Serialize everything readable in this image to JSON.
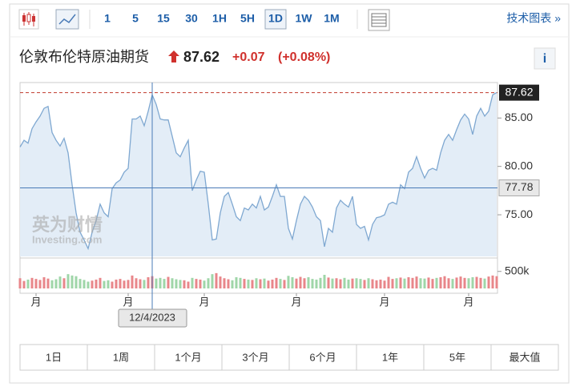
{
  "toolbar": {
    "intervals": [
      "1",
      "5",
      "15",
      "30",
      "1H",
      "5H",
      "1D",
      "1W",
      "1M"
    ],
    "active": "1D",
    "technical": "技术图表 »"
  },
  "header": {
    "name": "伦敦布伦特原油期货",
    "price": "87.62",
    "change": "+0.07",
    "change_pct": "(+0.08%)",
    "info": "i"
  },
  "watermark": {
    "cn": "英为财情",
    "en": "Investing.com"
  },
  "ranges": [
    "1日",
    "1周",
    "1个月",
    "3个月",
    "6个月",
    "1年",
    "5年",
    "最大值"
  ],
  "chart_data": {
    "type": "line",
    "color": "#7fa8d1",
    "fill": "#e3edf7",
    "categories": [
      null,
      null,
      null,
      null,
      "月",
      null,
      null,
      null,
      null,
      null,
      null,
      null,
      null,
      null,
      null,
      null,
      null,
      null,
      null,
      null,
      null,
      null,
      null,
      null,
      null,
      null,
      null,
      "月",
      null,
      null,
      null,
      null,
      null,
      null,
      null,
      null,
      null,
      null,
      null,
      null,
      null,
      null,
      null,
      null,
      null,
      null,
      "月",
      null,
      null,
      null,
      null,
      null,
      null,
      null,
      null,
      null,
      null,
      null,
      null,
      null,
      null,
      null,
      null,
      null,
      null,
      null,
      null,
      null,
      null,
      "月",
      null,
      null,
      null,
      null,
      null,
      null,
      null,
      null,
      null,
      null,
      null,
      null,
      null,
      null,
      null,
      null,
      null,
      null,
      null,
      null,
      null,
      "月",
      null,
      null,
      null,
      null,
      null,
      null,
      null,
      null,
      null,
      null,
      null,
      null,
      null,
      null,
      null,
      null,
      null,
      null,
      null,
      null,
      "月",
      null,
      null,
      null,
      null,
      null,
      null,
      null
    ],
    "values": [
      82.0,
      82.7,
      82.4,
      83.9,
      84.6,
      85.2,
      86.0,
      86.2,
      83.5,
      82.7,
      82.1,
      82.9,
      81.4,
      78.1,
      75.2,
      73.2,
      72.4,
      71.5,
      73.2,
      74.4,
      76.1,
      75.2,
      74.8,
      77.7,
      78.3,
      78.6,
      79.4,
      79.8,
      84.9,
      84.9,
      85.2,
      84.2,
      85.7,
      87.4,
      86.4,
      84.9,
      84.8,
      84.8,
      83.1,
      81.4,
      81.0,
      81.9,
      82.7,
      77.5,
      78.6,
      79.5,
      79.4,
      76.1,
      72.4,
      72.5,
      75.2,
      76.9,
      77.3,
      76.1,
      74.8,
      74.4,
      75.7,
      75.5,
      76.1,
      75.7,
      76.9,
      75.5,
      75.8,
      76.9,
      78.1,
      76.9,
      76.9,
      73.6,
      72.5,
      74.4,
      76.1,
      76.9,
      76.5,
      75.8,
      74.8,
      74.4,
      71.7,
      73.6,
      73.2,
      75.7,
      76.5,
      76.1,
      75.8,
      76.9,
      74.0,
      73.6,
      73.8,
      72.4,
      74.0,
      74.7,
      74.8,
      75.0,
      76.1,
      76.3,
      76.1,
      78.1,
      77.7,
      79.4,
      79.8,
      81.0,
      79.8,
      78.8,
      79.6,
      79.8,
      79.6,
      81.4,
      82.7,
      83.3,
      82.7,
      83.8,
      84.8,
      85.4,
      84.9,
      83.3,
      85.2,
      86.0,
      85.2,
      85.7,
      87.4,
      87.62
    ],
    "ylim": [
      70.7,
      88.5
    ],
    "yticks": [
      {
        "value": 75,
        "label": "75.00"
      },
      {
        "value": 80,
        "label": "80.00"
      },
      {
        "value": 85,
        "label": "85.00"
      }
    ],
    "last_price": {
      "value": 87.62,
      "label": "87.62",
      "color": "#c0392b"
    },
    "crosshair": {
      "value": 77.78,
      "label": "77.78",
      "date": "12/4/2023"
    },
    "volume": {
      "up_color": "#e8868a",
      "down_color": "#9fd6a8",
      "ylim": [
        0,
        800000
      ],
      "yticks": [
        {
          "value": 500000,
          "label": "500k"
        }
      ],
      "values": [
        300000,
        220000,
        260000,
        310000,
        280000,
        250000,
        330000,
        290000,
        240000,
        270000,
        350000,
        300000,
        420000,
        380000,
        360000,
        280000,
        250000,
        200000,
        230000,
        260000,
        310000,
        220000,
        240000,
        200000,
        260000,
        280000,
        230000,
        250000,
        380000,
        300000,
        270000,
        250000,
        330000,
        360000,
        290000,
        310000,
        280000,
        340000,
        300000,
        270000,
        250000,
        240000,
        200000,
        310000,
        280000,
        260000,
        230000,
        300000,
        420000,
        450000,
        350000,
        300000,
        270000,
        240000,
        330000,
        310000,
        280000,
        260000,
        250000,
        300000,
        270000,
        290000,
        230000,
        260000,
        310000,
        280000,
        250000,
        370000,
        330000,
        290000,
        340000,
        300000,
        330000,
        280000,
        260000,
        310000,
        400000,
        320000,
        290000,
        300000,
        270000,
        310000,
        260000,
        290000,
        300000,
        280000,
        250000,
        300000,
        270000,
        240000,
        260000,
        230000,
        340000,
        280000,
        300000,
        320000,
        290000,
        330000,
        310000,
        350000,
        300000,
        290000,
        320000,
        280000,
        310000,
        330000,
        360000,
        300000,
        280000,
        320000,
        350000,
        310000,
        300000,
        330000,
        340000,
        310000,
        290000,
        350000,
        380000,
        360000
      ]
    }
  }
}
